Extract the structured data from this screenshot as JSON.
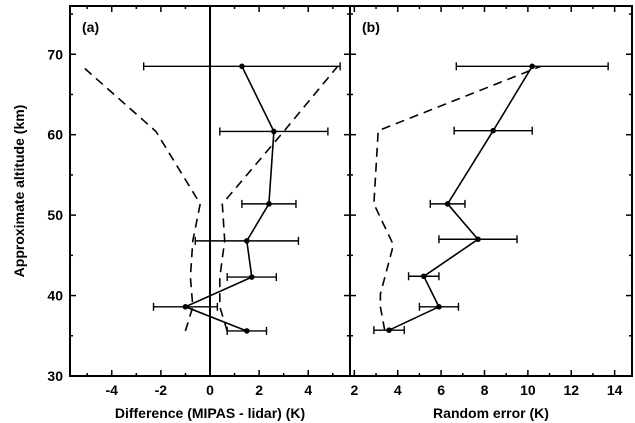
{
  "chart_data": {
    "type": "scatter",
    "ylabel": "Approximate altitude (km)",
    "ylim": [
      30,
      76
    ],
    "yticks": [
      "30",
      "40",
      "50",
      "60",
      "70"
    ],
    "panels": [
      {
        "label": "(a)",
        "xlabel": "Difference (MIPAS - lidar) (K)",
        "xlim": [
          -5.7,
          5.7
        ],
        "xticks": [
          "-4",
          "-2",
          "0",
          "2",
          "4"
        ],
        "zero_line": true,
        "points": [
          {
            "x": 1.5,
            "y": 35.6,
            "xerr": 0.8
          },
          {
            "x": -1.0,
            "y": 38.6,
            "xerr": 1.3
          },
          {
            "x": 1.7,
            "y": 42.3,
            "xerr": 1.0
          },
          {
            "x": 1.5,
            "y": 46.8,
            "xerr": 2.1
          },
          {
            "x": 2.4,
            "y": 51.4,
            "xerr": 1.1
          },
          {
            "x": 2.6,
            "y": 60.4,
            "xerr": 2.2
          },
          {
            "x": 1.3,
            "y": 68.5,
            "xerr": 4.0
          }
        ],
        "dashed": [
          {
            "x": -1.0,
            "y": 35.6
          },
          {
            "x": -0.7,
            "y": 38.6
          },
          {
            "x": -0.8,
            "y": 42.3
          },
          {
            "x": -0.7,
            "y": 46.8
          },
          {
            "x": -0.4,
            "y": 51.4
          },
          {
            "x": -2.2,
            "y": 60.4
          },
          {
            "x": -5.2,
            "y": 68.5
          }
        ],
        "dashed2": [
          {
            "x": 0.7,
            "y": 35.6
          },
          {
            "x": 0.4,
            "y": 38.6
          },
          {
            "x": 0.4,
            "y": 42.3
          },
          {
            "x": 0.6,
            "y": 46.8
          },
          {
            "x": 0.5,
            "y": 51.4
          },
          {
            "x": 3.0,
            "y": 60.4
          },
          {
            "x": 5.2,
            "y": 68.5
          }
        ]
      },
      {
        "label": "(b)",
        "xlabel": "Random error (K)",
        "xlim": [
          1.8,
          14.8
        ],
        "xticks": [
          "2",
          "4",
          "6",
          "8",
          "10",
          "12",
          "14"
        ],
        "zero_line": false,
        "points": [
          {
            "x": 3.6,
            "y": 35.7,
            "xerr": 0.7
          },
          {
            "x": 5.9,
            "y": 38.6,
            "xerr": 0.9
          },
          {
            "x": 5.2,
            "y": 42.4,
            "xerr": 0.7
          },
          {
            "x": 7.7,
            "y": 47.0,
            "xerr": 1.8
          },
          {
            "x": 6.3,
            "y": 51.4,
            "xerr": 0.8
          },
          {
            "x": 8.4,
            "y": 60.5,
            "xerr": 1.8
          },
          {
            "x": 10.2,
            "y": 68.5,
            "xerr": 3.5
          }
        ],
        "dashed": [
          {
            "x": 3.4,
            "y": 35.7
          },
          {
            "x": 3.2,
            "y": 38.6
          },
          {
            "x": 3.2,
            "y": 40.2
          },
          {
            "x": 3.8,
            "y": 46.3
          },
          {
            "x": 2.9,
            "y": 51.4
          },
          {
            "x": 3.1,
            "y": 60.5
          },
          {
            "x": 10.6,
            "y": 68.5
          }
        ]
      }
    ]
  }
}
